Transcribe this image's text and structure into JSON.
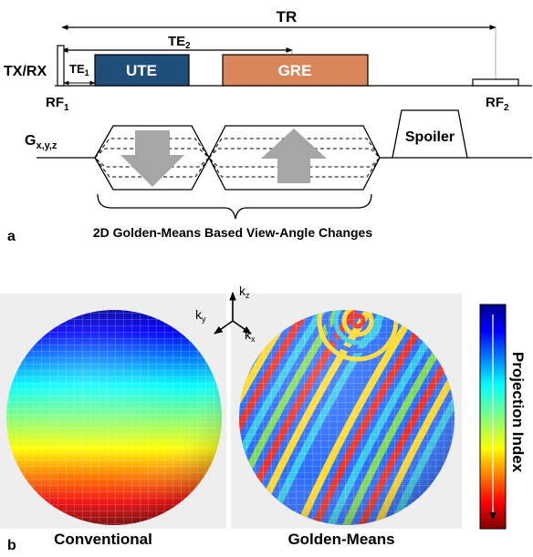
{
  "panel_a": {
    "panel_label": "a",
    "tr_label": "TR",
    "te2_base": "TE",
    "te2_sub": "2",
    "te1_base": "TE",
    "te1_sub": "1",
    "txrx_label": "TX/RX",
    "rf1_base": "RF",
    "rf1_sub": "1",
    "rf2_base": "RF",
    "rf2_sub": "2",
    "ute_label": "UTE",
    "gre_label": "GRE",
    "gradient_base": "G",
    "gradient_sub": "x,y,z",
    "spoiler_label": "Spoiler",
    "brace_caption": "2D Golden-Means Based View-Angle Changes",
    "colors": {
      "ute": "#1f4e79",
      "gre": "#d9875a",
      "arrow": "#a6a6a6"
    }
  },
  "panel_b": {
    "panel_label": "b",
    "left_caption": "Conventional",
    "right_caption": "Golden-Means",
    "axes": {
      "kz_base": "k",
      "kz_sub": "z",
      "ky_base": "k",
      "ky_sub": "y",
      "kx_base": "k",
      "kx_sub": "x"
    },
    "colorbar_label": "Projection Index",
    "colors": {
      "background": "#eeeeee"
    }
  }
}
